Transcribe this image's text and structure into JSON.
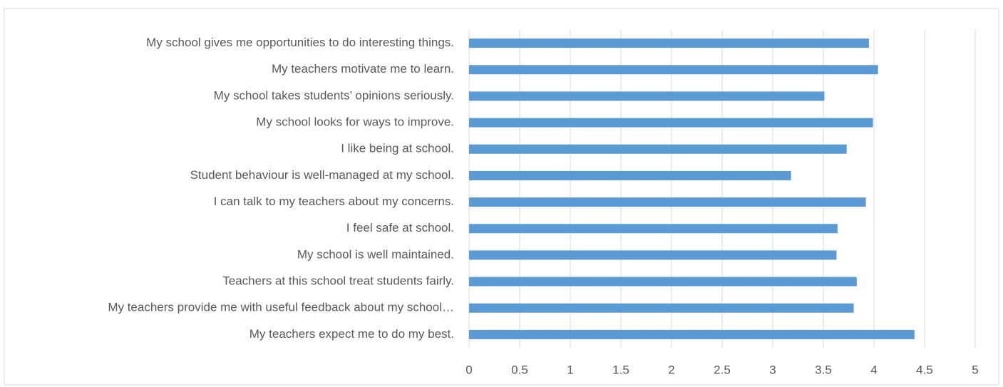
{
  "chart_data": {
    "type": "barh",
    "categories": [
      "My school gives me opportunities to do interesting things.",
      "My teachers motivate me to learn.",
      "My school takes students’ opinions seriously.",
      "My school looks for ways to improve.",
      "I like being at school.",
      "Student behaviour is well-managed at my school.",
      "I can talk to my teachers about my concerns.",
      "I feel safe at school.",
      "My school is well maintained.",
      "Teachers at this school treat students fairly.",
      "My teachers provide me with useful feedback about my school…",
      "My teachers expect me to do my best."
    ],
    "values": [
      3.95,
      4.04,
      3.51,
      3.99,
      3.73,
      3.18,
      3.92,
      3.64,
      3.63,
      3.83,
      3.8,
      4.4
    ],
    "color": "#5b9bd5",
    "xlim": [
      0,
      5
    ],
    "xticks": [
      0,
      0.5,
      1,
      1.5,
      2,
      2.5,
      3,
      3.5,
      4,
      4.5,
      5
    ],
    "grid": true
  }
}
